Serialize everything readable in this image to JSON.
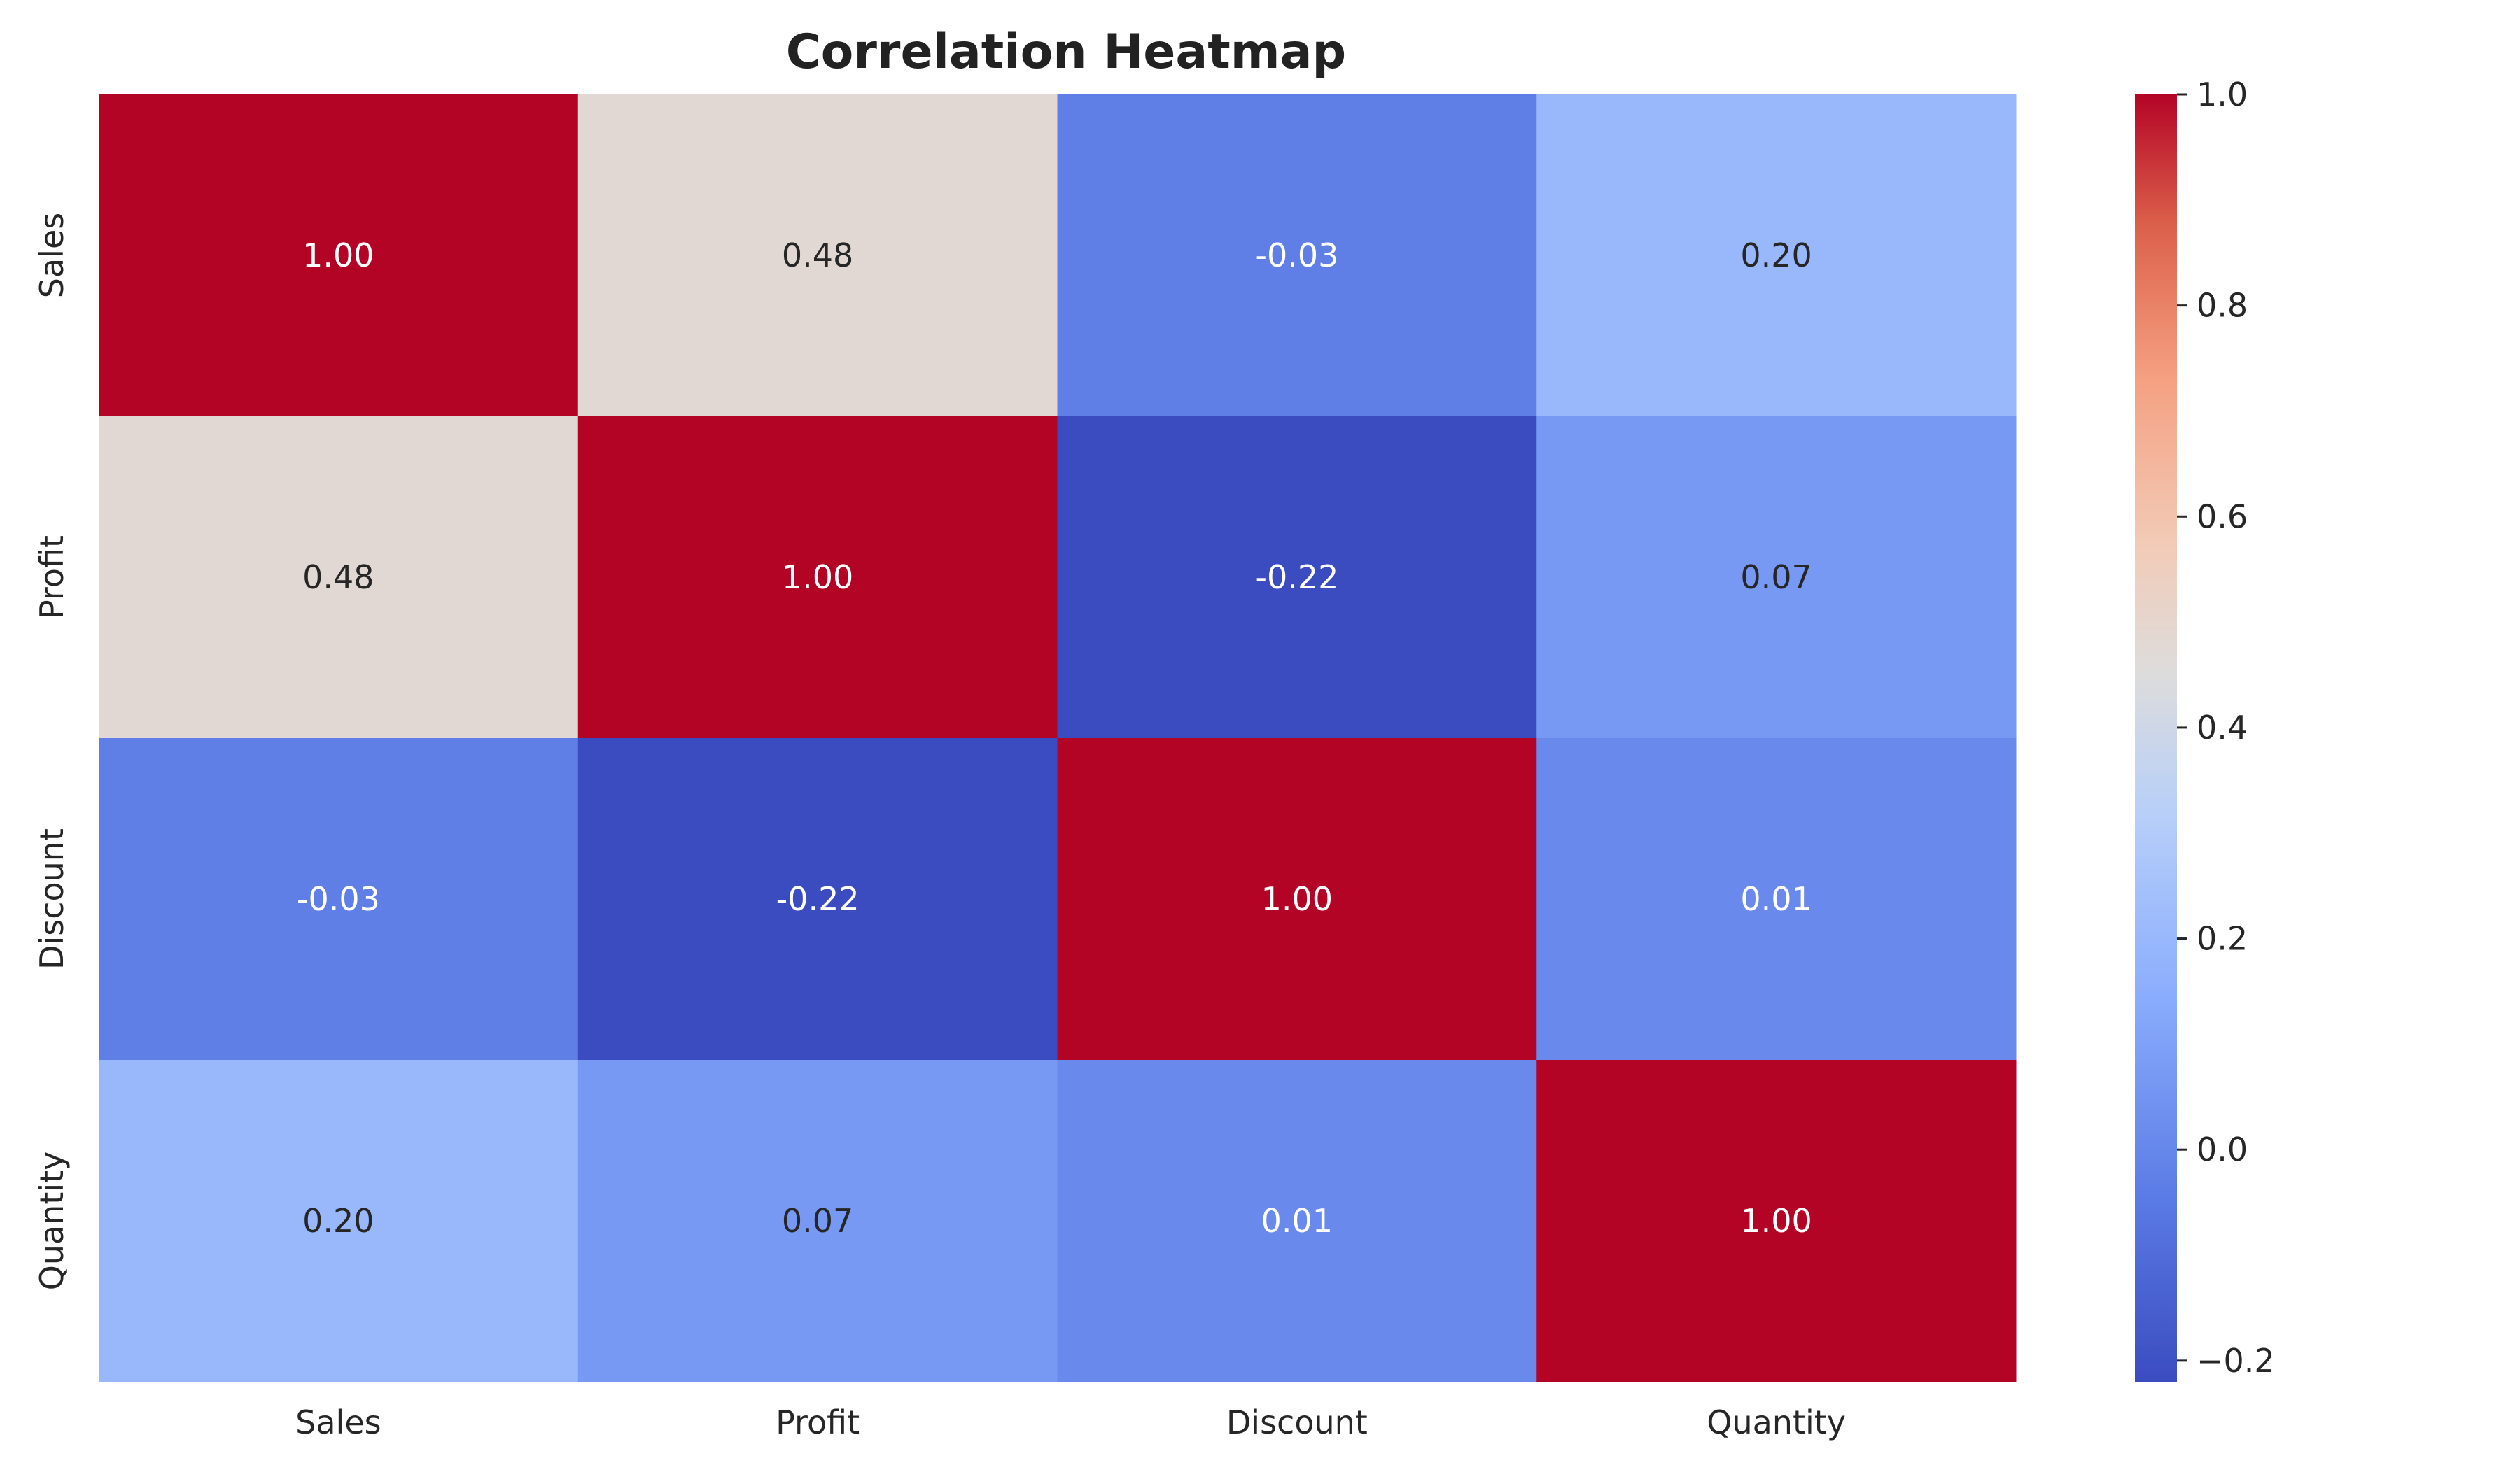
{
  "chart_data": {
    "type": "heatmap",
    "title": "Correlation Heatmap",
    "xlabel": "",
    "ylabel": "",
    "x_categories": [
      "Sales",
      "Profit",
      "Discount",
      "Quantity"
    ],
    "y_categories": [
      "Sales",
      "Profit",
      "Discount",
      "Quantity"
    ],
    "values": [
      [
        1.0,
        0.48,
        -0.03,
        0.2
      ],
      [
        0.48,
        1.0,
        -0.22,
        0.07
      ],
      [
        -0.03,
        -0.22,
        1.0,
        0.01
      ],
      [
        0.2,
        0.07,
        0.01,
        1.0
      ]
    ],
    "value_format": "0.00",
    "colorscale": "coolwarm",
    "colorbar": {
      "range": [
        -0.22,
        1.0
      ],
      "ticks": [
        1.0,
        0.8,
        0.6,
        0.4,
        0.2,
        0.0,
        -0.2
      ],
      "tick_labels": [
        "1.0",
        "0.8",
        "0.6",
        "0.4",
        "0.2",
        "0.0",
        "−0.2"
      ]
    },
    "grid": false,
    "legend": "colorbar-right"
  }
}
